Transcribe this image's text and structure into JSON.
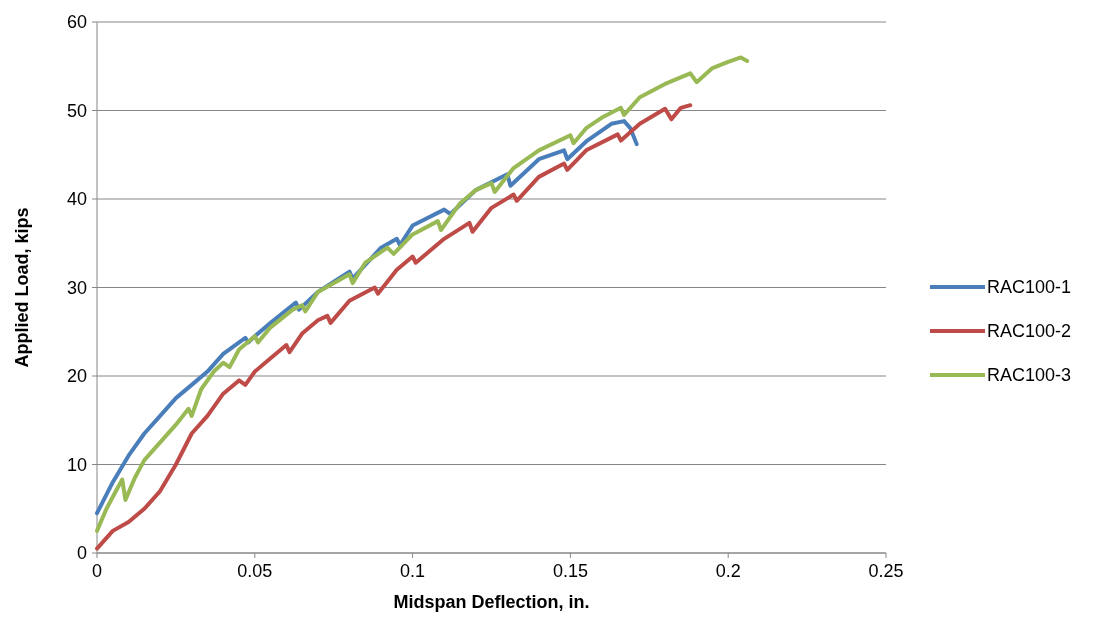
{
  "chart_data": {
    "type": "line",
    "xlabel": "Midspan Deflection, in.",
    "ylabel": "Applied Load, kips",
    "xlim": [
      0,
      0.25
    ],
    "xticks": [
      0,
      0.05,
      0.1,
      0.15,
      0.2,
      0.25
    ],
    "ylim": [
      0,
      60
    ],
    "yticks": [
      0,
      10,
      20,
      30,
      40,
      50,
      60
    ],
    "grid": "y",
    "legend": "right",
    "marker": "none",
    "line_style": "solid",
    "series": [
      {
        "name": "RAC100-1",
        "color": "#4a7ebb",
        "x": [
          0,
          0.005,
          0.01,
          0.015,
          0.02,
          0.025,
          0.03,
          0.035,
          0.04,
          0.047,
          0.048,
          0.05,
          0.055,
          0.063,
          0.064,
          0.07,
          0.08,
          0.081,
          0.09,
          0.095,
          0.096,
          0.1,
          0.11,
          0.112,
          0.12,
          0.13,
          0.131,
          0.14,
          0.148,
          0.149,
          0.155,
          0.163,
          0.167,
          0.169,
          0.171
        ],
        "values": [
          4.5,
          8,
          11,
          13.5,
          15.5,
          17.5,
          19,
          20.5,
          22.5,
          24.3,
          23.8,
          24.5,
          26,
          28.3,
          27.5,
          29.5,
          31.8,
          31,
          34.5,
          35.5,
          34.8,
          37,
          38.8,
          38.3,
          41,
          42.8,
          41.5,
          44.5,
          45.5,
          44.5,
          46.5,
          48.5,
          48.8,
          48,
          46.2
        ]
      },
      {
        "name": "RAC100-2",
        "color": "#be4b48",
        "x": [
          0,
          0.005,
          0.01,
          0.015,
          0.02,
          0.025,
          0.03,
          0.035,
          0.04,
          0.045,
          0.047,
          0.05,
          0.055,
          0.06,
          0.061,
          0.065,
          0.07,
          0.073,
          0.074,
          0.08,
          0.088,
          0.089,
          0.095,
          0.1,
          0.101,
          0.11,
          0.118,
          0.119,
          0.125,
          0.132,
          0.133,
          0.14,
          0.148,
          0.149,
          0.155,
          0.165,
          0.166,
          0.172,
          0.18,
          0.182,
          0.185,
          0.188
        ],
        "values": [
          0.5,
          2.5,
          3.5,
          5,
          7,
          10,
          13.5,
          15.5,
          18,
          19.5,
          19,
          20.5,
          22,
          23.5,
          22.7,
          24.8,
          26.3,
          26.8,
          26,
          28.5,
          30,
          29.3,
          32,
          33.5,
          32.8,
          35.5,
          37.3,
          36.3,
          39,
          40.5,
          39.8,
          42.5,
          44,
          43.3,
          45.5,
          47.3,
          46.6,
          48.5,
          50.2,
          49,
          50.3,
          50.6
        ]
      },
      {
        "name": "RAC100-3",
        "color": "#98b954",
        "x": [
          0,
          0.003,
          0.006,
          0.008,
          0.009,
          0.012,
          0.015,
          0.02,
          0.025,
          0.029,
          0.03,
          0.033,
          0.037,
          0.04,
          0.042,
          0.045,
          0.05,
          0.051,
          0.055,
          0.062,
          0.065,
          0.066,
          0.07,
          0.08,
          0.081,
          0.085,
          0.092,
          0.094,
          0.1,
          0.108,
          0.109,
          0.115,
          0.12,
          0.125,
          0.126,
          0.132,
          0.14,
          0.15,
          0.151,
          0.155,
          0.16,
          0.166,
          0.167,
          0.172,
          0.18,
          0.188,
          0.19,
          0.195,
          0.2,
          0.204,
          0.206
        ],
        "values": [
          2.5,
          5,
          7,
          8.3,
          6,
          8.5,
          10.5,
          12.5,
          14.5,
          16.3,
          15.5,
          18.5,
          20.5,
          21.5,
          21,
          23,
          24.5,
          23.8,
          25.5,
          27.5,
          28,
          27.3,
          29.5,
          31.5,
          30.5,
          32.8,
          34.5,
          33.8,
          36,
          37.5,
          36.5,
          39.5,
          41,
          41.8,
          40.8,
          43.5,
          45.5,
          47.2,
          46.3,
          48,
          49.2,
          50.3,
          49.5,
          51.5,
          53,
          54.2,
          53.2,
          54.8,
          55.5,
          56,
          55.6
        ]
      }
    ]
  }
}
